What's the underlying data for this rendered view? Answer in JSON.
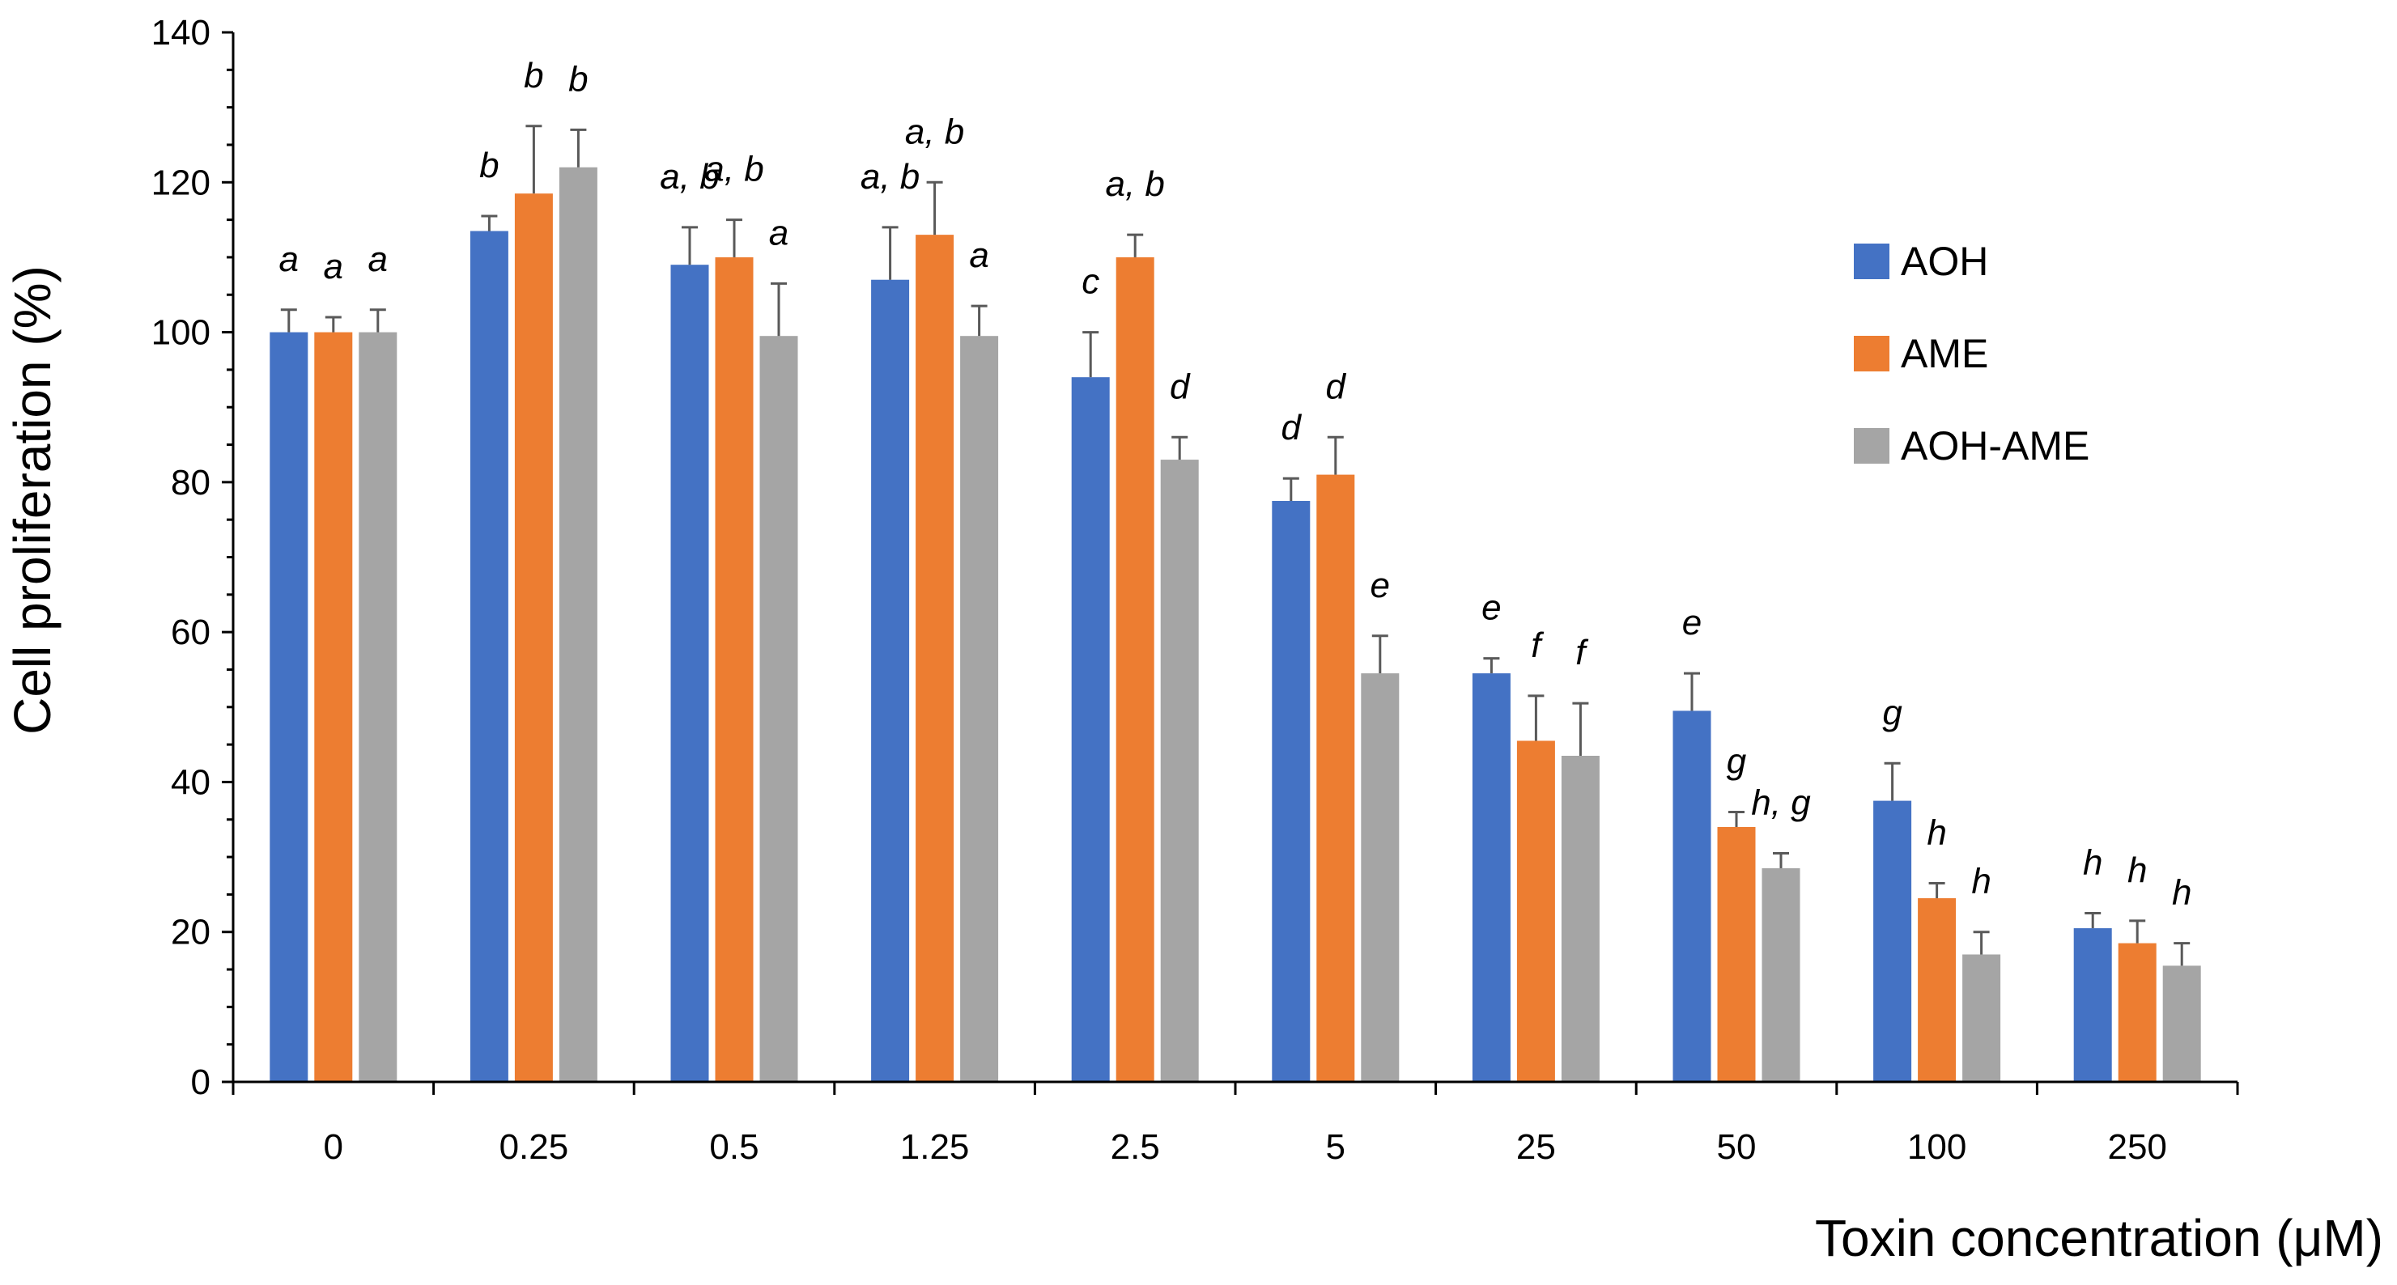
{
  "chart_data": {
    "type": "bar",
    "title": "",
    "xlabel": "Toxin concentration (μM)",
    "ylabel": "Cell proliferation (%)",
    "ylim": [
      0,
      140
    ],
    "yticks": [
      0,
      20,
      40,
      60,
      80,
      100,
      120,
      140
    ],
    "grid": false,
    "legend_position": "right",
    "categories": [
      "0",
      "0.25",
      "0.5",
      "1.25",
      "2.5",
      "5",
      "25",
      "50",
      "100",
      "250"
    ],
    "series": [
      {
        "name": "AOH",
        "color": "#4472C4",
        "values": [
          100,
          113.5,
          109,
          107,
          94,
          77.5,
          54.5,
          49.5,
          37.5,
          20.5
        ],
        "errors": [
          3,
          2,
          5,
          7,
          6,
          3,
          2,
          5,
          5,
          2
        ],
        "labels": [
          "a",
          "b",
          "a, b",
          "a, b",
          "c",
          "d",
          "e",
          "e",
          "g",
          "h"
        ]
      },
      {
        "name": "AME",
        "color": "#ED7D31",
        "values": [
          100,
          118.5,
          110,
          113,
          110,
          81,
          45.5,
          34,
          24.5,
          18.5
        ],
        "errors": [
          2,
          9,
          5,
          7,
          3,
          5,
          6,
          2,
          2,
          3
        ],
        "labels": [
          "a",
          "b",
          "a, b",
          "a, b",
          "a, b",
          "d",
          "f",
          "g",
          "h",
          "h"
        ]
      },
      {
        "name": "AOH-AME",
        "color": "#A5A5A5",
        "values": [
          100,
          122,
          99.5,
          99.5,
          83,
          54.5,
          43.5,
          28.5,
          17,
          15.5
        ],
        "errors": [
          3,
          5,
          7,
          4,
          3,
          5,
          7,
          2,
          3,
          3
        ],
        "labels": [
          "a",
          "b",
          "a",
          "a",
          "d",
          "e",
          "f",
          "h, g",
          "h",
          "h"
        ]
      }
    ]
  }
}
